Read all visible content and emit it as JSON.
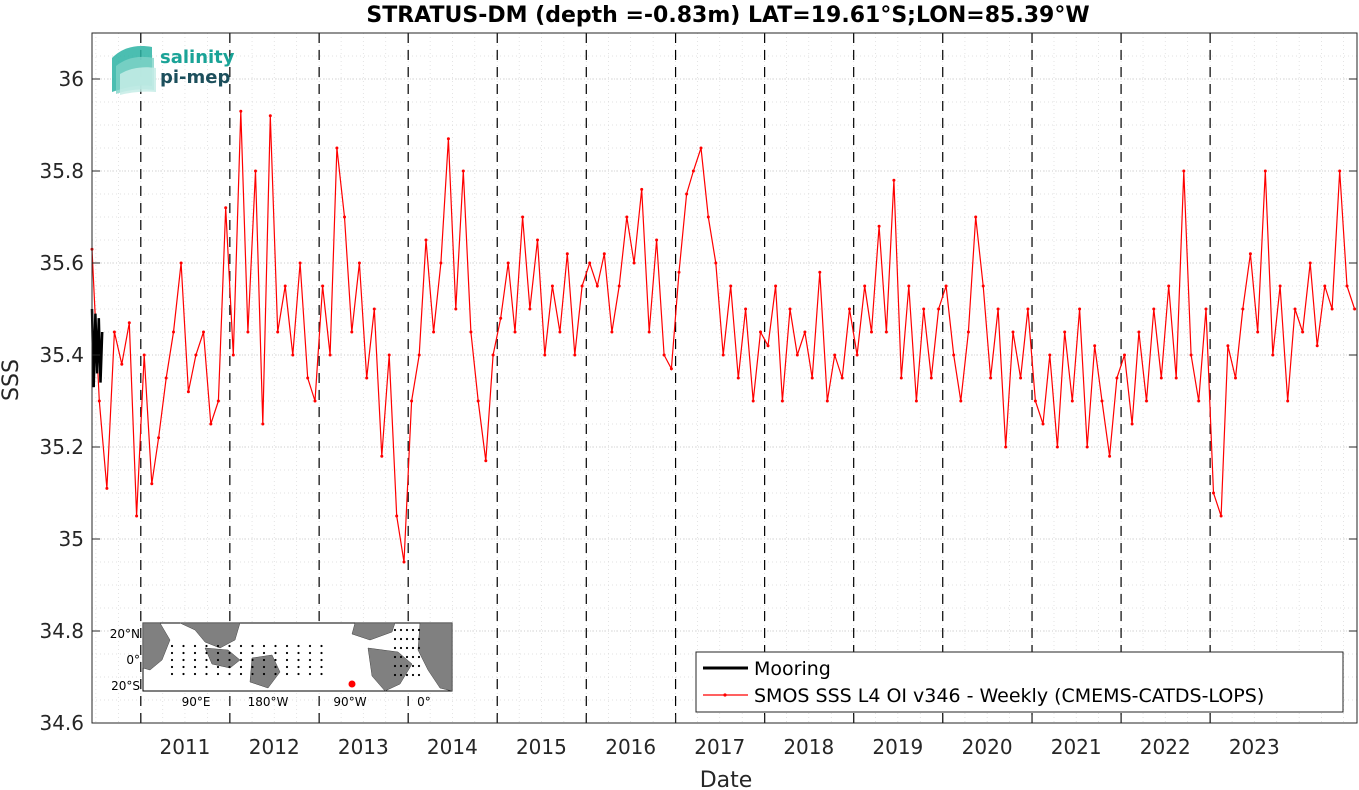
{
  "chart_data": {
    "type": "line",
    "title": "STRATUS-DM (depth =-0.83m) LAT=19.61°S;LON=85.39°W",
    "xlabel": "Date",
    "ylabel": "SSS",
    "ylim": [
      34.6,
      36.1
    ],
    "yticks": [
      "34.6",
      "34.8",
      "35",
      "35.2",
      "35.4",
      "35.6",
      "35.8",
      "36"
    ],
    "yticks_values": [
      34.6,
      34.8,
      35.0,
      35.2,
      35.4,
      35.6,
      35.8,
      36.0
    ],
    "xlim": [
      "2010-06-15",
      "2024-08-25"
    ],
    "xticks": [
      "2011",
      "2012",
      "2013",
      "2014",
      "2015",
      "2016",
      "2017",
      "2018",
      "2019",
      "2020",
      "2021",
      "2022",
      "2023"
    ],
    "grid": true,
    "year_lines": true,
    "legend": {
      "placement": "bottom-right",
      "entries": [
        "Mooring",
        "SMOS SSS L4 OI v346 - Weekly (CMEMS-CATDS-LOPS)"
      ]
    },
    "series": [
      {
        "name": "Mooring",
        "color": "#000000",
        "x": [
          "2010-06-15",
          "2010-06-22",
          "2010-06-29",
          "2010-07-06",
          "2010-07-13",
          "2010-07-20",
          "2010-07-27"
        ],
        "values": [
          35.5,
          35.33,
          35.49,
          35.36,
          35.48,
          35.34,
          35.45
        ]
      },
      {
        "name": "SMOS SSS L4 OI v346 - Weekly (CMEMS-CATDS-LOPS)",
        "color": "#ff0000",
        "x": [
          "2010-06-15",
          "2010-07-15",
          "2010-08-15",
          "2010-09-15",
          "2010-10-15",
          "2010-11-15",
          "2010-12-15",
          "2011-01-15",
          "2011-02-15",
          "2011-03-15",
          "2011-04-15",
          "2011-05-15",
          "2011-06-15",
          "2011-07-15",
          "2011-08-15",
          "2011-09-15",
          "2011-10-15",
          "2011-11-15",
          "2011-12-15",
          "2012-01-15",
          "2012-02-15",
          "2012-03-15",
          "2012-04-15",
          "2012-05-15",
          "2012-06-15",
          "2012-07-15",
          "2012-08-15",
          "2012-09-15",
          "2012-10-15",
          "2012-11-15",
          "2012-12-15",
          "2013-01-15",
          "2013-02-15",
          "2013-03-15",
          "2013-04-15",
          "2013-05-15",
          "2013-06-15",
          "2013-07-15",
          "2013-08-15",
          "2013-09-15",
          "2013-10-15",
          "2013-11-15",
          "2013-12-15",
          "2014-01-15",
          "2014-02-15",
          "2014-03-15",
          "2014-04-15",
          "2014-05-15",
          "2014-06-15",
          "2014-07-15",
          "2014-08-15",
          "2014-09-15",
          "2014-10-15",
          "2014-11-15",
          "2014-12-15",
          "2015-01-15",
          "2015-02-15",
          "2015-03-15",
          "2015-04-15",
          "2015-05-15",
          "2015-06-15",
          "2015-07-15",
          "2015-08-15",
          "2015-09-15",
          "2015-10-15",
          "2015-11-15",
          "2015-12-15",
          "2016-01-15",
          "2016-02-15",
          "2016-03-15",
          "2016-04-15",
          "2016-05-15",
          "2016-06-15",
          "2016-07-15",
          "2016-08-15",
          "2016-09-15",
          "2016-10-15",
          "2016-11-15",
          "2016-12-15",
          "2017-01-15",
          "2017-02-15",
          "2017-03-15",
          "2017-04-15",
          "2017-05-15",
          "2017-06-15",
          "2017-07-15",
          "2017-08-15",
          "2017-09-15",
          "2017-10-15",
          "2017-11-15",
          "2017-12-15",
          "2018-01-15",
          "2018-02-15",
          "2018-03-15",
          "2018-04-15",
          "2018-05-15",
          "2018-06-15",
          "2018-07-15",
          "2018-08-15",
          "2018-09-15",
          "2018-10-15",
          "2018-11-15",
          "2018-12-15",
          "2019-01-15",
          "2019-02-15",
          "2019-03-15",
          "2019-04-15",
          "2019-05-15",
          "2019-06-15",
          "2019-07-15",
          "2019-08-15",
          "2019-09-15",
          "2019-10-15",
          "2019-11-15",
          "2019-12-15",
          "2020-01-15",
          "2020-02-15",
          "2020-03-15",
          "2020-04-15",
          "2020-05-15",
          "2020-06-15",
          "2020-07-15",
          "2020-08-15",
          "2020-09-15",
          "2020-10-15",
          "2020-11-15",
          "2020-12-15",
          "2021-01-15",
          "2021-02-15",
          "2021-03-15",
          "2021-04-15",
          "2021-05-15",
          "2021-06-15",
          "2021-07-15",
          "2021-08-15",
          "2021-09-15",
          "2021-10-15",
          "2021-11-15",
          "2021-12-15",
          "2022-01-15",
          "2022-02-15",
          "2022-03-15",
          "2022-04-15",
          "2022-05-15",
          "2022-06-15",
          "2022-07-15",
          "2022-08-15",
          "2022-09-15",
          "2022-10-15",
          "2022-11-15",
          "2022-12-15",
          "2023-01-15",
          "2023-02-15",
          "2023-03-15",
          "2023-04-15",
          "2023-05-15",
          "2023-06-15",
          "2023-07-15",
          "2023-08-15",
          "2023-09-15",
          "2023-10-15",
          "2023-11-15",
          "2023-12-15",
          "2024-01-15",
          "2024-02-15",
          "2024-03-15",
          "2024-04-15",
          "2024-05-15",
          "2024-06-15",
          "2024-07-15",
          "2024-08-15"
        ],
        "values": [
          35.63,
          35.3,
          35.11,
          35.45,
          35.38,
          35.47,
          35.05,
          35.4,
          35.12,
          35.22,
          35.35,
          35.45,
          35.6,
          35.32,
          35.4,
          35.45,
          35.25,
          35.3,
          35.72,
          35.4,
          35.93,
          35.45,
          35.8,
          35.25,
          35.92,
          35.45,
          35.55,
          35.4,
          35.6,
          35.35,
          35.3,
          35.55,
          35.4,
          35.85,
          35.7,
          35.45,
          35.6,
          35.35,
          35.5,
          35.18,
          35.4,
          35.05,
          34.95,
          35.3,
          35.4,
          35.65,
          35.45,
          35.6,
          35.87,
          35.5,
          35.8,
          35.45,
          35.3,
          35.17,
          35.4,
          35.48,
          35.6,
          35.45,
          35.7,
          35.5,
          35.65,
          35.4,
          35.55,
          35.45,
          35.62,
          35.4,
          35.55,
          35.6,
          35.55,
          35.62,
          35.45,
          35.55,
          35.7,
          35.6,
          35.76,
          35.45,
          35.65,
          35.4,
          35.37,
          35.58,
          35.75,
          35.8,
          35.85,
          35.7,
          35.6,
          35.4,
          35.55,
          35.35,
          35.5,
          35.3,
          35.45,
          35.42,
          35.55,
          35.3,
          35.5,
          35.4,
          35.45,
          35.35,
          35.58,
          35.3,
          35.4,
          35.35,
          35.5,
          35.4,
          35.55,
          35.45,
          35.68,
          35.45,
          35.78,
          35.35,
          35.55,
          35.3,
          35.5,
          35.35,
          35.5,
          35.55,
          35.4,
          35.3,
          35.45,
          35.7,
          35.55,
          35.35,
          35.5,
          35.2,
          35.45,
          35.35,
          35.5,
          35.3,
          35.25,
          35.4,
          35.2,
          35.45,
          35.3,
          35.5,
          35.2,
          35.42,
          35.3,
          35.18,
          35.35,
          35.4,
          35.25,
          35.45,
          35.3,
          35.5,
          35.35,
          35.55,
          35.35,
          35.8,
          35.4,
          35.3,
          35.5,
          35.1,
          35.05,
          35.42,
          35.35,
          35.5,
          35.62,
          35.45,
          35.8,
          35.4,
          35.55,
          35.3,
          35.5,
          35.45,
          35.6,
          35.42,
          35.55,
          35.5,
          35.8,
          35.55,
          35.5
        ]
      }
    ]
  },
  "logo": {
    "line1": "salinity",
    "line2": "pi-mep"
  },
  "inset_map": {
    "lat_labels": [
      "20°N",
      "0°",
      "20°S"
    ],
    "lon_labels": [
      "90°E",
      "180°W",
      "90°W",
      "0°"
    ]
  },
  "colors": {
    "mooring": "#000000",
    "smos": "#ff0000",
    "logo_teal": "#1aa397",
    "logo_dark": "#1c4f5c",
    "land": "#808080"
  }
}
